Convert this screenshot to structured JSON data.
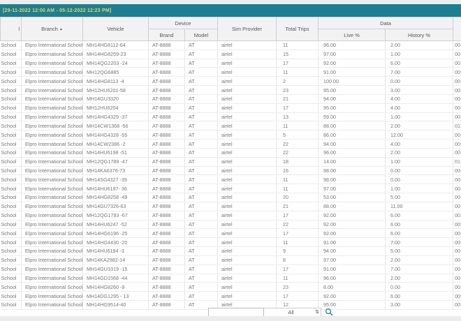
{
  "title_bar": {
    "date_range": "[29-11-2022 12:00 AM - 05-12-2022 12:23 PM]"
  },
  "colors": {
    "header_teal": "#1d7f92",
    "date_text": "#f0d050",
    "header_bg": "#f2f2f2"
  },
  "table": {
    "group_headers": {
      "device": "Device",
      "data": "Data",
      "left_clipped": "l",
      "right_clipped": ""
    },
    "column_headers": {
      "branch": "Branch",
      "sort_icon": "▲",
      "vehicle": "Vehicle",
      "brand": "Brand",
      "model": "Model",
      "sim_provider": "Sim Provider",
      "total_trips": "Total Trips",
      "live_pct": "Live %",
      "history_pct": "History %"
    },
    "rows": [
      {
        "school": "School",
        "branch": "Elpro International School",
        "vehicle": "MH14HG8112-64",
        "brand": "AT-8888",
        "model": "AT",
        "sim": "airtel",
        "trips": "11",
        "live": "96.00",
        "history": "2.00",
        "time": "00:"
      },
      {
        "school": "School",
        "branch": "Elpro International School",
        "vehicle": "MH14HG8259-23",
        "brand": "AT-8888",
        "model": "AT",
        "sim": "airtel",
        "trips": "15",
        "live": "97.00",
        "history": "1.00",
        "time": "00:"
      },
      {
        "school": "School",
        "branch": "Elpro International School",
        "vehicle": "MH14QG2203 -24",
        "brand": "AT-8888",
        "model": "AT",
        "sim": "airtel",
        "trips": "17",
        "live": "92.00",
        "history": "6.00",
        "time": "00:"
      },
      {
        "school": "School",
        "branch": "Elpro International School",
        "vehicle": "MH12QG6885",
        "brand": "AT-8888",
        "model": "AT",
        "sim": "airtel",
        "trips": "11",
        "live": "91.00",
        "history": "7.00",
        "time": "00:"
      },
      {
        "school": "School",
        "branch": "Elpro International School",
        "vehicle": "MH14HG8113 -4",
        "brand": "AT-8888",
        "model": "AT",
        "sim": "airtel",
        "trips": "2",
        "live": "100.00",
        "history": "0.00",
        "time": "00:"
      },
      {
        "school": "School",
        "branch": "Elpro International School",
        "vehicle": "MH12HU6201-58",
        "brand": "AT-8888",
        "model": "AT",
        "sim": "airtel",
        "trips": "23",
        "live": "95.00",
        "history": "3.00",
        "time": "00:"
      },
      {
        "school": "School",
        "branch": "Elpro International School",
        "vehicle": "MH14GU3320",
        "brand": "AT-8888",
        "model": "AT",
        "sim": "airtel",
        "trips": "21",
        "live": "94.00",
        "history": "4.00",
        "time": "00:"
      },
      {
        "school": "School",
        "branch": "Elpro International School",
        "vehicle": "MH12HU6204",
        "brand": "AT-8888",
        "model": "AT",
        "sim": "airtel",
        "trips": "17",
        "live": "95.00",
        "history": "4.00",
        "time": "00:"
      },
      {
        "school": "School",
        "branch": "Elpro International School",
        "vehicle": "MH14HG4329 -37",
        "brand": "AT-8888",
        "model": "AT",
        "sim": "airtel",
        "trips": "13",
        "live": "59.00",
        "history": "1.00",
        "time": "00:"
      },
      {
        "school": "School",
        "branch": "Elpro International School",
        "vehicle": "MH14CW1368 -56",
        "brand": "AT-8888",
        "model": "AT",
        "sim": "airtel",
        "trips": "11",
        "live": "88.00",
        "history": "2.00",
        "time": "01:"
      },
      {
        "school": "School",
        "branch": "Elpro International School",
        "vehicle": "MH14HG4328 -55",
        "brand": "AT-8888",
        "model": "AT",
        "sim": "airtel",
        "trips": "5",
        "live": "86.00",
        "history": "12.00",
        "time": "00:"
      },
      {
        "school": "School",
        "branch": "Elpro International School",
        "vehicle": "MH14CW2386 -2",
        "brand": "AT-8888",
        "model": "AT",
        "sim": "airtel",
        "trips": "22",
        "live": "94.00",
        "history": "4.00",
        "time": "00:"
      },
      {
        "school": "School",
        "branch": "Elpro International School",
        "vehicle": "MH14HU6198 -51",
        "brand": "AT-8888",
        "model": "AT",
        "sim": "airtel",
        "trips": "22",
        "live": "96.00",
        "history": "2.00",
        "time": "00:"
      },
      {
        "school": "School",
        "branch": "Elpro International School",
        "vehicle": "MH12QG1789 -47",
        "brand": "AT-8888",
        "model": "AT",
        "sim": "airtel",
        "trips": "18",
        "live": "14.00",
        "history": "1.00",
        "time": "01:"
      },
      {
        "school": "School",
        "branch": "Elpro International School",
        "vehicle": "MH14KA6376-73",
        "brand": "AT-8888",
        "model": "AT",
        "sim": "airtel",
        "trips": "16",
        "live": "98.00",
        "history": "0.00",
        "time": "00:"
      },
      {
        "school": "School",
        "branch": "Elpro International School",
        "vehicle": "MH14SG4327 -39",
        "brand": "AT-8888",
        "model": "AT",
        "sim": "airtel",
        "trips": "11",
        "live": "98.00",
        "history": "0.00",
        "time": "00:"
      },
      {
        "school": "School",
        "branch": "Elpro International School",
        "vehicle": "MH14HU6197- 36",
        "brand": "AT-8888",
        "model": "AT",
        "sim": "airtel",
        "trips": "11",
        "live": "97.00",
        "history": "1.00",
        "time": "00:"
      },
      {
        "school": "School",
        "branch": "Elpro International School",
        "vehicle": "MH14HG8258 -49",
        "brand": "AT-8888",
        "model": "AT",
        "sim": "airtel",
        "trips": "20",
        "live": "53.00",
        "history": "5.00",
        "time": "00:"
      },
      {
        "school": "School",
        "branch": "Elpro International School",
        "vehicle": "MH14GU7326-63",
        "brand": "AT-8888",
        "model": "AT",
        "sim": "airtel",
        "trips": "21",
        "live": "88.00",
        "history": "11.00",
        "time": "00:"
      },
      {
        "school": "School",
        "branch": "Elpro International School",
        "vehicle": "MH12QG1793 -67",
        "brand": "AT-8888",
        "model": "AT",
        "sim": "airtel",
        "trips": "17",
        "live": "92.00",
        "history": "6.00",
        "time": "00:"
      },
      {
        "school": "School",
        "branch": "Elpro International School",
        "vehicle": "MH14HU6247 -52",
        "brand": "AT-8888",
        "model": "AT",
        "sim": "airtel",
        "trips": "22",
        "live": "92.00",
        "history": "6.00",
        "time": "00:"
      },
      {
        "school": "School",
        "branch": "Elpro International School",
        "vehicle": "MH14HG6196 -25",
        "brand": "AT-8888",
        "model": "AT",
        "sim": "airtel",
        "trips": "17",
        "live": "92.00",
        "history": "6.00",
        "time": "00:"
      },
      {
        "school": "School",
        "branch": "Elpro International School",
        "vehicle": "MH14HG4430 -20",
        "brand": "AT-8888",
        "model": "AT",
        "sim": "airtel",
        "trips": "11",
        "live": "91.00",
        "history": "7.00",
        "time": "00:"
      },
      {
        "school": "School",
        "branch": "Elpro International School",
        "vehicle": "MH14HU6194 -3",
        "brand": "AT-8888",
        "model": "AT",
        "sim": "airtel",
        "trips": "9",
        "live": "94.00",
        "history": "5.00",
        "time": "00:"
      },
      {
        "school": "School",
        "branch": "Elpro International School",
        "vehicle": "MH14KA2982-14",
        "brand": "AT-8888",
        "model": "AT",
        "sim": "airtel",
        "trips": "8",
        "live": "97.00",
        "history": "2.00",
        "time": "00:"
      },
      {
        "school": "School",
        "branch": "Elpro International School",
        "vehicle": "MH14GU3319 -15",
        "brand": "AT-8888",
        "model": "AT",
        "sim": "airtel",
        "trips": "17",
        "live": "91.00",
        "history": "7.00",
        "time": "00:"
      },
      {
        "school": "School",
        "branch": "Elpro International School",
        "vehicle": "MH14GD1568 -44",
        "brand": "AT-8888",
        "model": "AT",
        "sim": "airtel",
        "trips": "11",
        "live": "96.00",
        "history": "2.00",
        "time": "00:"
      },
      {
        "school": "School",
        "branch": "Elpro International School",
        "vehicle": "MH14HG8260 -9",
        "brand": "AT-8888",
        "model": "AT",
        "sim": "airtel",
        "trips": "23",
        "live": "8.00",
        "history": "0.00",
        "time": "00:"
      },
      {
        "school": "School",
        "branch": "Elpro International School",
        "vehicle": "MH14DG1295 - 13",
        "brand": "AT-8888",
        "model": "AT",
        "sim": "airtel",
        "trips": "17",
        "live": "92.00",
        "history": "6.00",
        "time": "00:"
      },
      {
        "school": "School",
        "branch": "Elpro International School",
        "vehicle": "MH14HG9514-40",
        "brand": "AT-8888",
        "model": "AT",
        "sim": "airtel",
        "trips": "12",
        "live": "95.00",
        "history": "3.00",
        "time": "00:"
      }
    ]
  },
  "footer": {
    "search_value": "",
    "search_placeholder": "",
    "page_size_value": "All",
    "updown_icon": "⇅"
  }
}
